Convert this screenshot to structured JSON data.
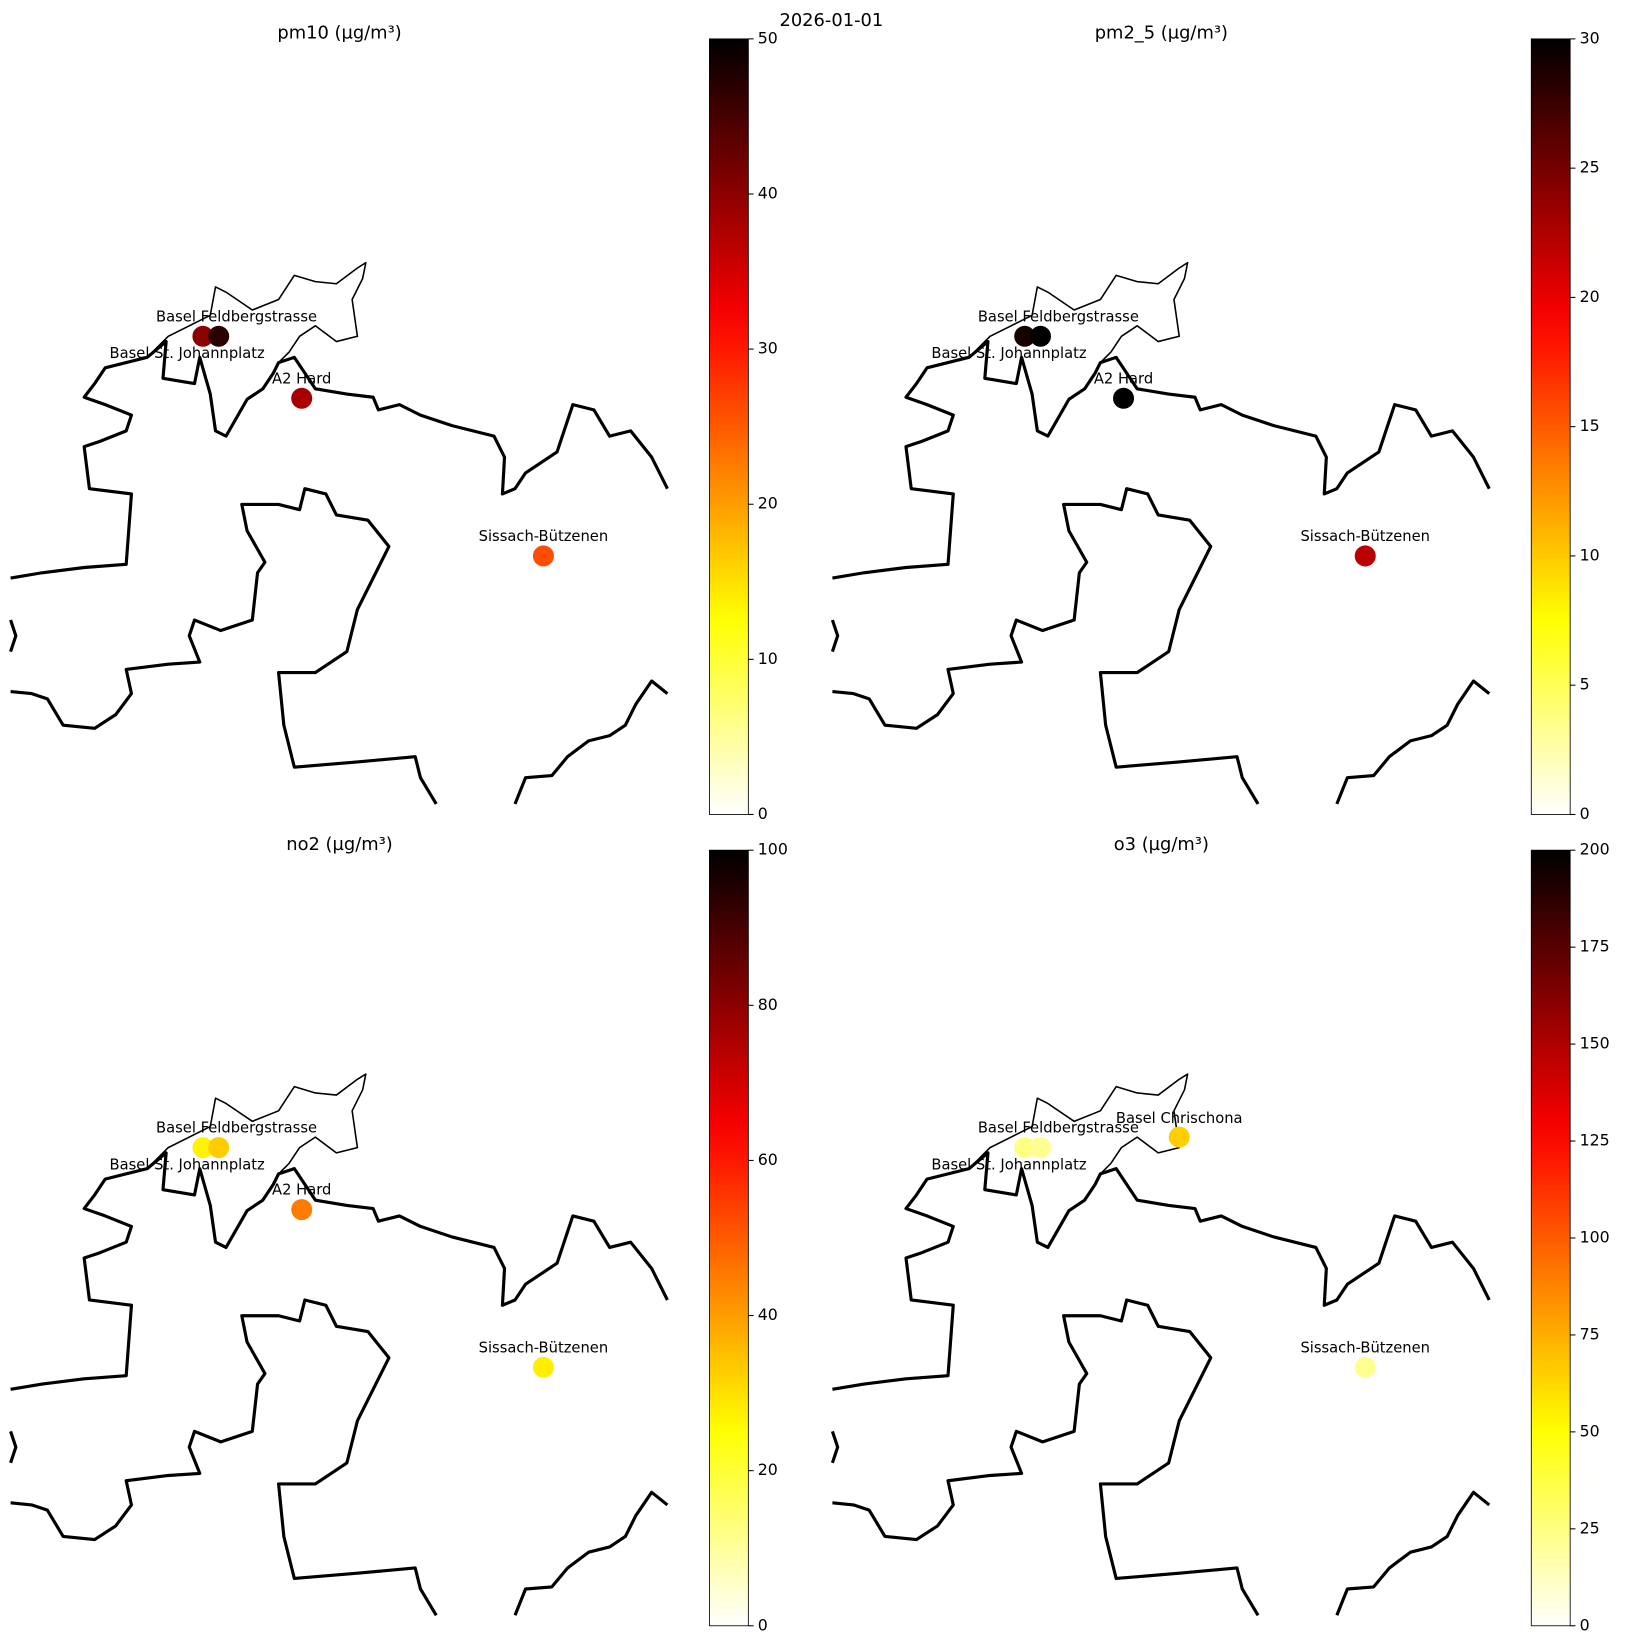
{
  "suptitle": "2026-01-01",
  "cmap": "hot_r",
  "panels": [
    {
      "title": "pm10 (µg/m³)",
      "clim": [
        0,
        50
      ],
      "ticks": [
        0,
        10,
        20,
        30,
        40,
        50
      ],
      "stations": [
        {
          "name": "Basel St. Johannplatz",
          "value": 40
        },
        {
          "name": "Basel Feldbergstrasse",
          "value": 47
        },
        {
          "name": "A2 Hard",
          "value": 38
        },
        {
          "name": "Sissach-Bützenen",
          "value": 26
        }
      ]
    },
    {
      "title": "pm2_5 (µg/m³)",
      "clim": [
        0,
        30
      ],
      "ticks": [
        0,
        5,
        10,
        15,
        20,
        25,
        30
      ],
      "stations": [
        {
          "name": "Basel St. Johannplatz",
          "value": 29
        },
        {
          "name": "Basel Feldbergstrasse",
          "value": 30
        },
        {
          "name": "A2 Hard",
          "value": 30
        },
        {
          "name": "Sissach-Bützenen",
          "value": 22
        }
      ]
    },
    {
      "title": "no2 (µg/m³)",
      "clim": [
        0,
        100
      ],
      "ticks": [
        0,
        20,
        40,
        60,
        80,
        100
      ],
      "stations": [
        {
          "name": "Basel St. Johannplatz",
          "value": 27
        },
        {
          "name": "Basel Feldbergstrasse",
          "value": 33
        },
        {
          "name": "A2 Hard",
          "value": 45
        },
        {
          "name": "Sissach-Bützenen",
          "value": 28
        }
      ]
    },
    {
      "title": "o3 (µg/m³)",
      "clim": [
        0,
        200
      ],
      "ticks": [
        0,
        25,
        50,
        75,
        100,
        125,
        150,
        175,
        200
      ],
      "stations": [
        {
          "name": "Basel St. Johannplatz",
          "value": 25
        },
        {
          "name": "Basel Feldbergstrasse",
          "value": 22
        },
        {
          "name": "Basel Chrischona",
          "value": 65
        },
        {
          "name": "Sissach-Bützenen",
          "value": 22
        }
      ]
    }
  ]
}
